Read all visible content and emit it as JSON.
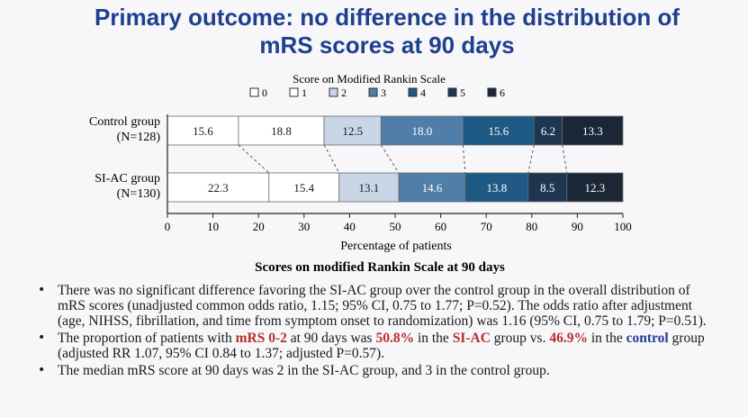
{
  "slide": {
    "title_line1": "Primary outcome: no difference in the distribution of",
    "title_line2": "mRS scores at 90 days"
  },
  "chart_data": {
    "type": "bar",
    "orientation": "horizontal-stacked",
    "title": "Scores on modified Rankin Scale at 90 days",
    "legend_title": "Score on Modified Rankin Scale",
    "legend_placement": "top",
    "categories": [
      {
        "label": "Control group",
        "sub": "(N=128)"
      },
      {
        "label": "SI-AC group",
        "sub": "(N=130)"
      }
    ],
    "series": [
      {
        "name": "0",
        "color": "#ffffff",
        "text_color": "#1a1a1a",
        "values": [
          15.6,
          22.3
        ]
      },
      {
        "name": "1",
        "color": "#ffffff",
        "text_color": "#1a1a1a",
        "values": [
          18.8,
          15.4
        ]
      },
      {
        "name": "2",
        "color": "#c8d6e6",
        "text_color": "#1a1a1a",
        "values": [
          12.5,
          13.1
        ]
      },
      {
        "name": "3",
        "color": "#4f7ea8",
        "text_color": "#ffffff",
        "values": [
          18.0,
          14.6
        ]
      },
      {
        "name": "4",
        "color": "#1f5a84",
        "text_color": "#ffffff",
        "values": [
          15.6,
          13.8
        ]
      },
      {
        "name": "5",
        "color": "#1d3652",
        "text_color": "#ffffff",
        "values": [
          6.2,
          8.5
        ]
      },
      {
        "name": "6",
        "color": "#1b2736",
        "text_color": "#ffffff",
        "values": [
          13.3,
          12.3
        ]
      }
    ],
    "xlabel": "Percentage of patients",
    "xlim": [
      0,
      100
    ],
    "xticks": [
      0,
      10,
      20,
      30,
      40,
      50,
      60,
      70,
      80,
      90,
      100
    ],
    "grid": false
  },
  "bullets": [
    {
      "parts": [
        {
          "text": "There was no significant difference favoring the SI-AC group over the control group in the overall distribution of mRS scores (unadjusted common odds ratio, 1.15; 95% CI, 0.75 to 1.77; P=0.52). The odds ratio after adjustment (age, NIHSS, fibrillation, and time from symptom onset to randomization) was 1.16 (95% CI, 0.75 to 1.79; P=0.51).",
          "style": ""
        }
      ]
    },
    {
      "parts": [
        {
          "text": "The proportion of patients with ",
          "style": ""
        },
        {
          "text": "mRS 0-2",
          "style": "hl-red"
        },
        {
          "text": " at 90 days was ",
          "style": ""
        },
        {
          "text": "50.8%",
          "style": "hl-red"
        },
        {
          "text": " in the ",
          "style": ""
        },
        {
          "text": "SI-AC",
          "style": "hl-red"
        },
        {
          "text": " group vs. ",
          "style": ""
        },
        {
          "text": "46.9%",
          "style": "hl-red"
        },
        {
          "text": " in the ",
          "style": ""
        },
        {
          "text": "control",
          "style": "hl-blue"
        },
        {
          "text": " group (adjusted RR 1.07, 95% CI 0.84 to 1.37; adjusted P=0.57).",
          "style": ""
        }
      ]
    },
    {
      "parts": [
        {
          "text": "The median mRS score at 90 days was 2 in the SI-AC group, and 3 in the control group.",
          "style": ""
        }
      ]
    }
  ]
}
